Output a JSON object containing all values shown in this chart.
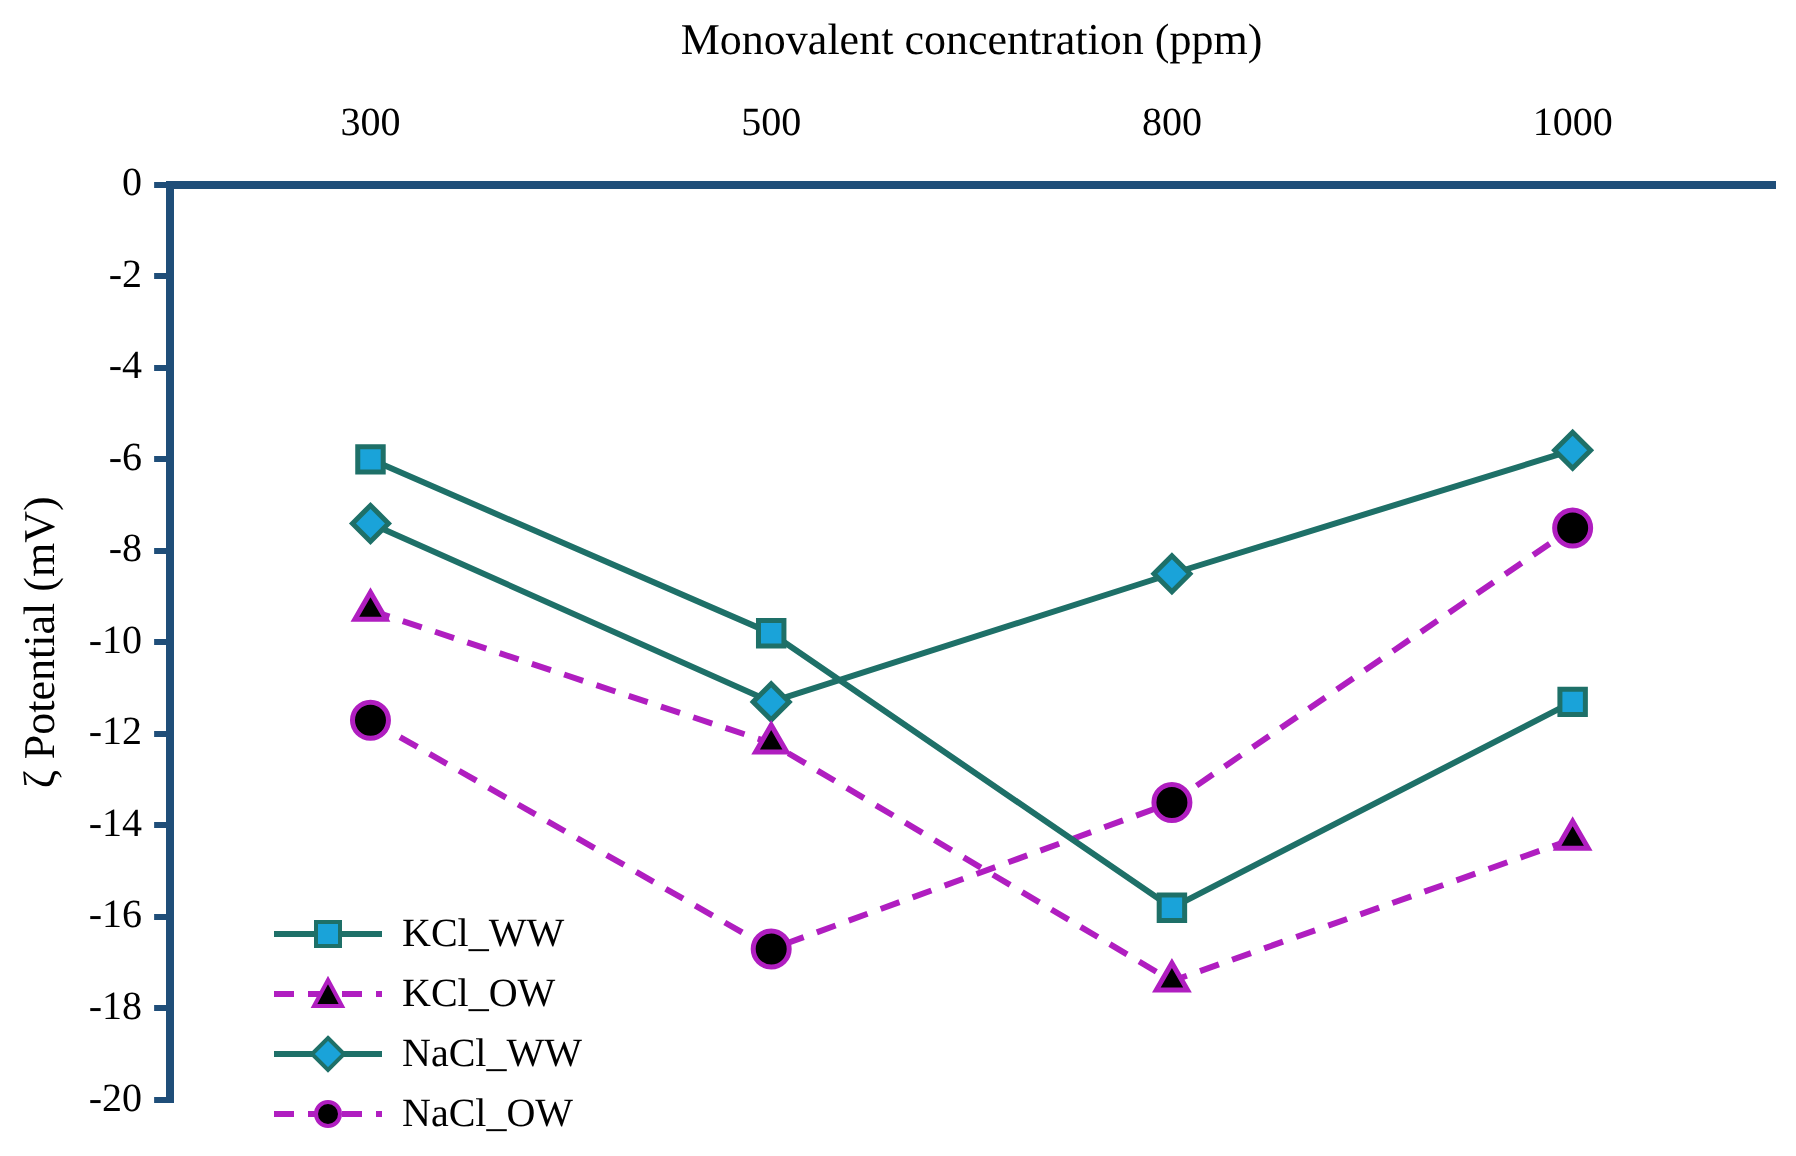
{
  "chart_data": {
    "type": "line",
    "xlabel": "Monovalent concentration (ppm)",
    "ylabel": "ζ Potential (mV)",
    "categories": [
      "300",
      "500",
      "800",
      "1000"
    ],
    "ylim": [
      -20,
      0
    ],
    "yticks": [
      0,
      -2,
      -4,
      -6,
      -8,
      -10,
      -12,
      -14,
      -16,
      -18,
      -20
    ],
    "grid": false,
    "legend": "bottom left",
    "series": [
      {
        "name": "KCl_WW",
        "color": "#1e7068",
        "marker": "square",
        "line_style": "solid",
        "values": [
          -6.0,
          -9.8,
          -15.8,
          -11.3
        ]
      },
      {
        "name": "KCl_OW",
        "color": "#b01ec0",
        "marker": "triangle",
        "line_style": "dashed",
        "values": [
          -9.3,
          -12.2,
          -17.4,
          -14.3
        ]
      },
      {
        "name": "NaCl_WW",
        "color": "#1e7068",
        "marker": "diamond",
        "line_style": "solid",
        "values": [
          -7.4,
          -11.3,
          -8.5,
          -5.8
        ]
      },
      {
        "name": "NaCl_OW",
        "color": "#b01ec0",
        "marker": "circle",
        "line_style": "dashed",
        "values": [
          -11.7,
          -16.7,
          -13.5,
          -7.5
        ]
      }
    ]
  }
}
